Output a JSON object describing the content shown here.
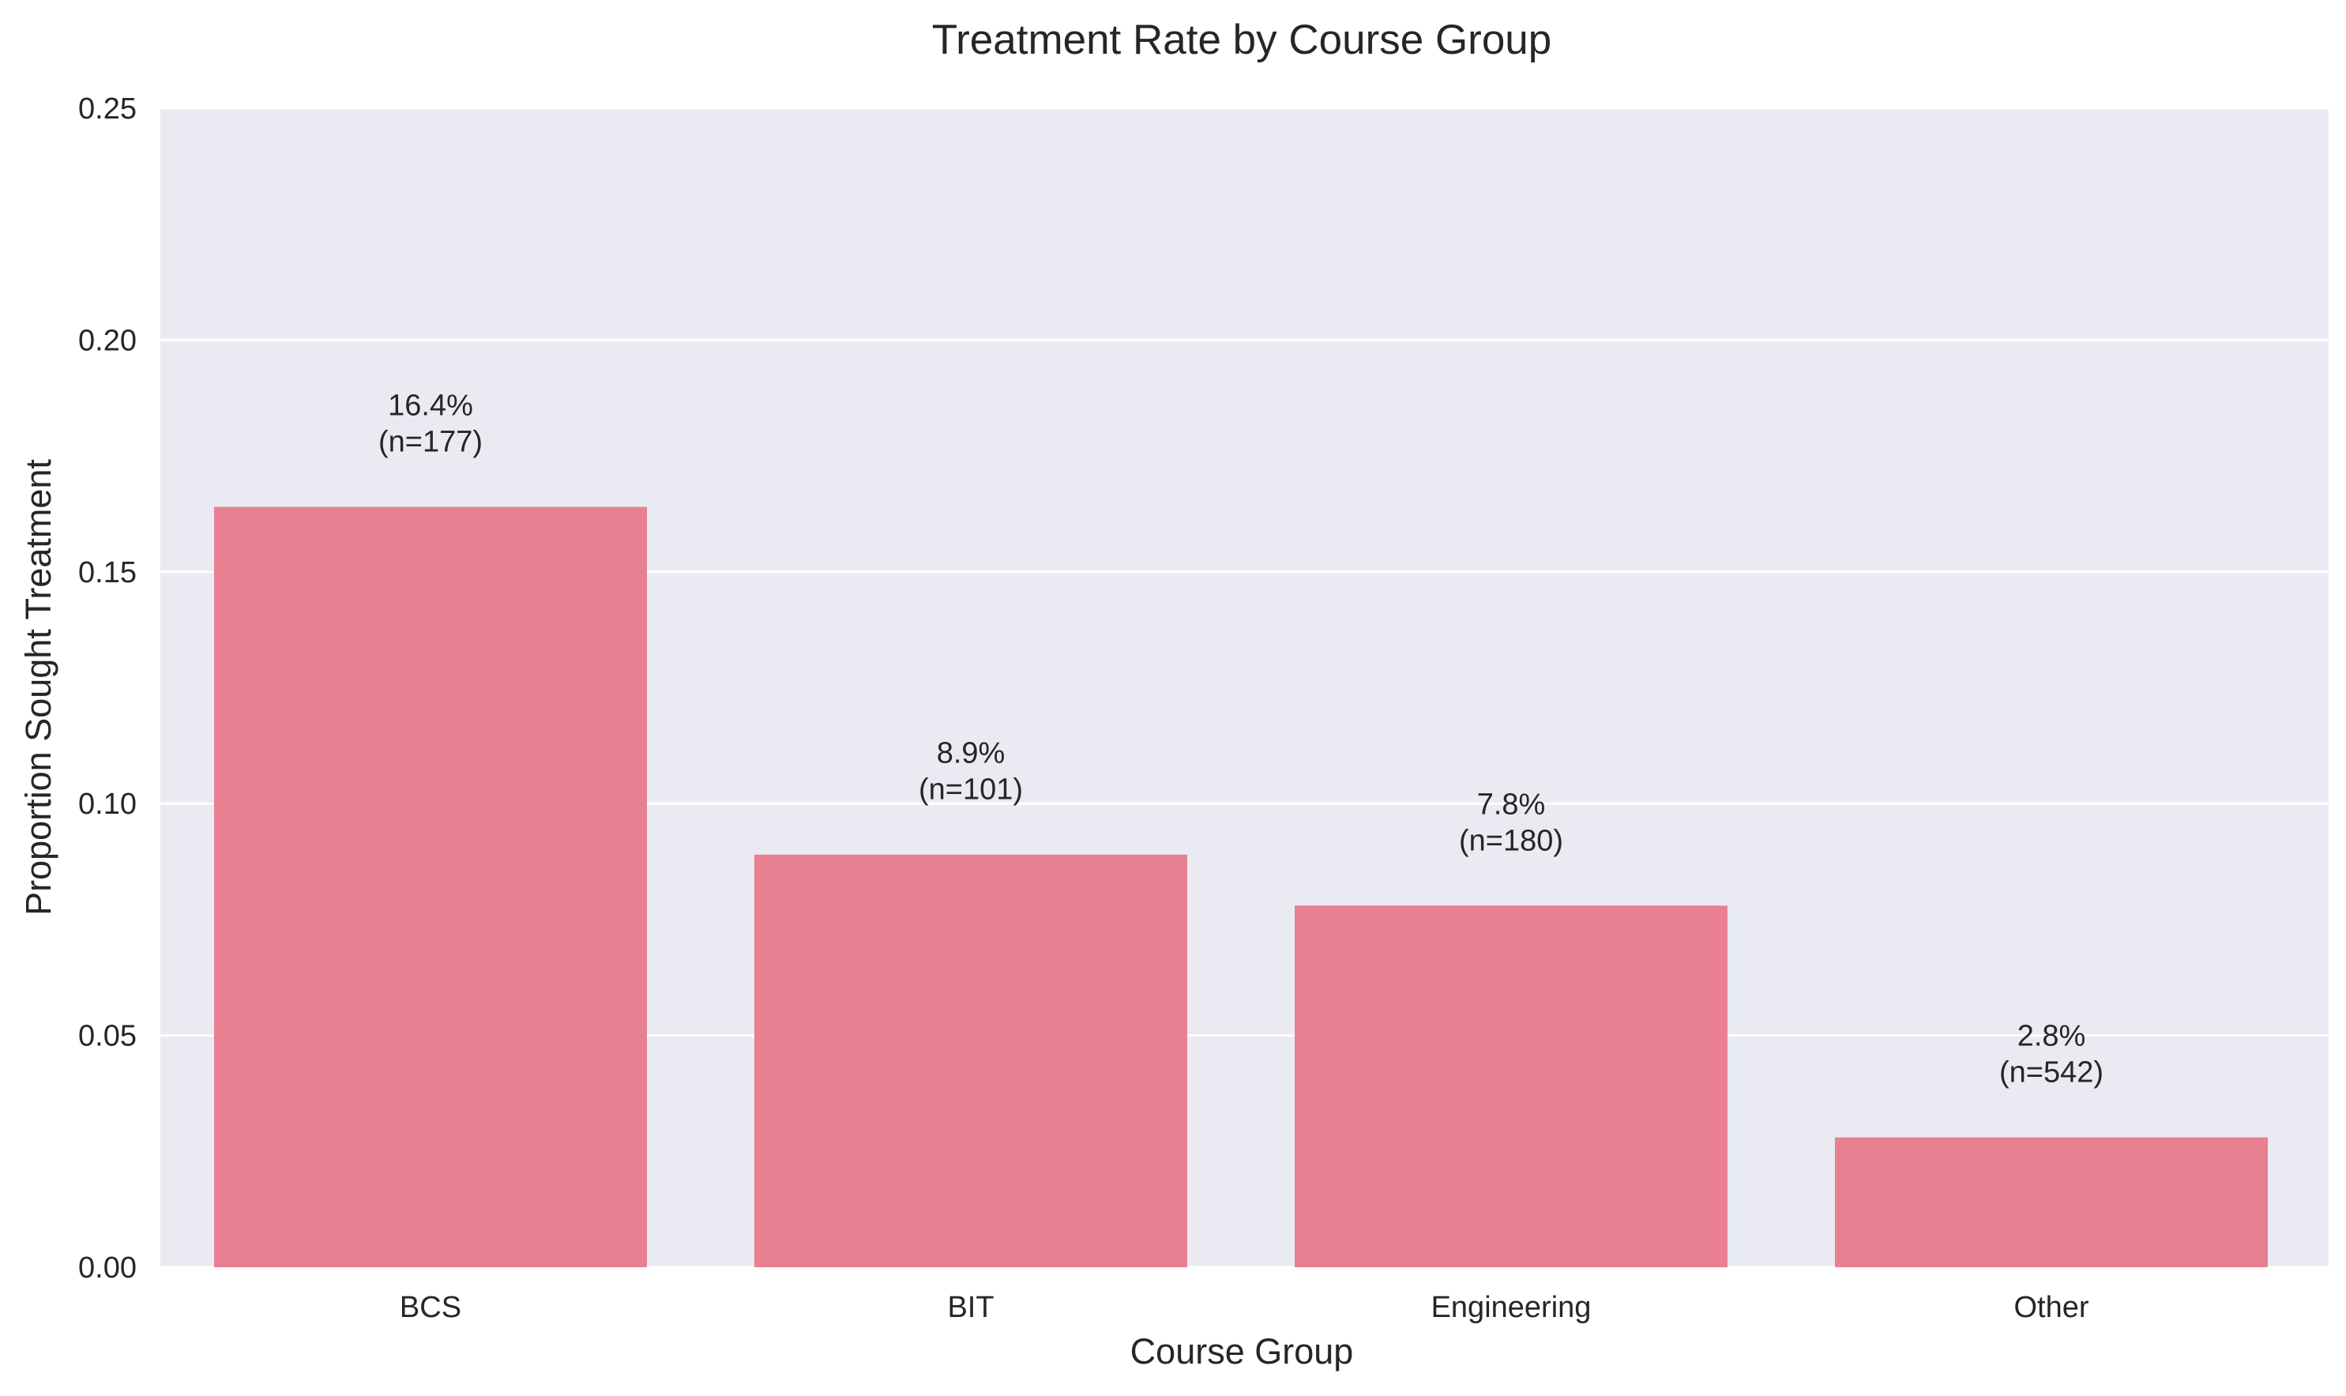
{
  "chart_data": {
    "type": "bar",
    "title": "Treatment Rate by Course Group",
    "xlabel": "Course Group",
    "ylabel": "Proportion Sought Treatment",
    "categories": [
      "BCS",
      "BIT",
      "Engineering",
      "Other"
    ],
    "values": [
      0.164,
      0.089,
      0.078,
      0.028
    ],
    "value_labels": [
      "16.4%",
      "8.9%",
      "7.8%",
      "2.8%"
    ],
    "count_labels": [
      "(n=177)",
      "(n=101)",
      "(n=180)",
      "(n=542)"
    ],
    "ylim": [
      0,
      0.25
    ],
    "yticks": [
      0,
      0.05,
      0.1,
      0.15,
      0.2,
      0.25
    ],
    "ytick_labels": [
      "0.00",
      "0.05",
      "0.10",
      "0.15",
      "0.20",
      "0.25"
    ],
    "grid": true,
    "legend": "none",
    "colors": {
      "bar": "#e88092",
      "plot_background": "#eaeaf2",
      "grid": "#ffffff",
      "text": "#262626"
    }
  }
}
